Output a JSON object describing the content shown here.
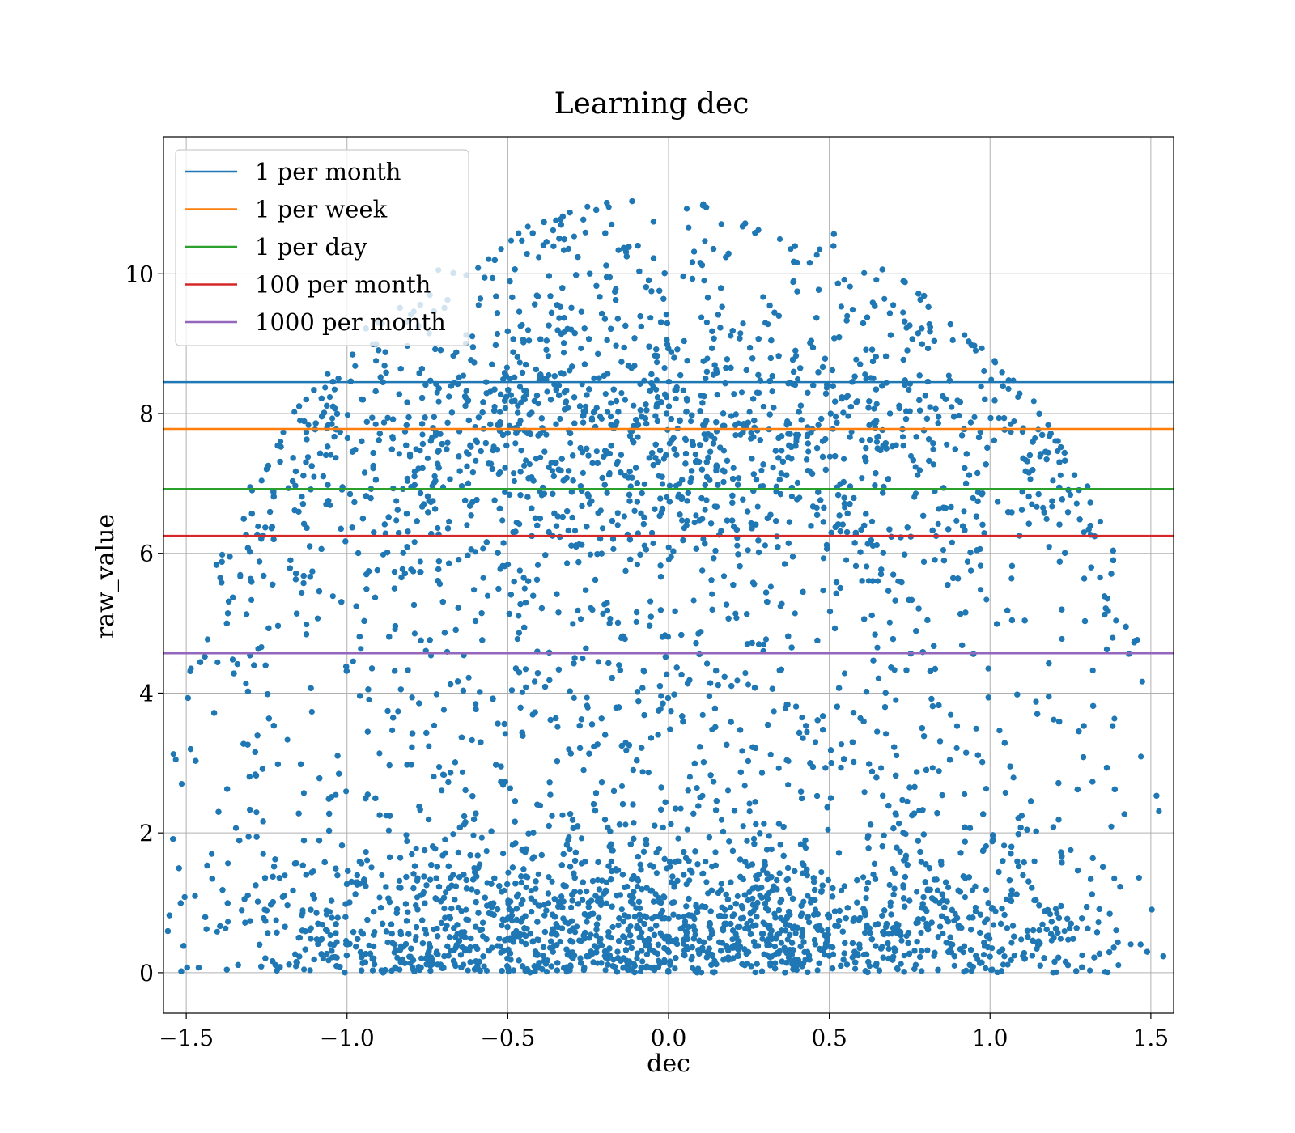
{
  "chart_data": {
    "type": "scatter",
    "title": "Learning dec",
    "xlabel": "dec",
    "ylabel": "raw_value",
    "xlim": [
      -1.5708,
      1.5708
    ],
    "ylim": [
      -0.58,
      11.96
    ],
    "xticks": [
      -1.5,
      -1.0,
      -0.5,
      0.0,
      0.5,
      1.0,
      1.5
    ],
    "xtick_labels": [
      "−1.5",
      "−1.0",
      "−0.5",
      "0.0",
      "0.5",
      "1.0",
      "1.5"
    ],
    "yticks": [
      0,
      2,
      4,
      6,
      8,
      10
    ],
    "ytick_labels": [
      "0",
      "2",
      "4",
      "6",
      "8",
      "10"
    ],
    "grid": true,
    "legend_position": "top-left",
    "scatter": {
      "color": "#1f77b4",
      "approx_point_count": 12000,
      "x_range": [
        -1.5708,
        1.5708
      ],
      "y_range": [
        0,
        11.1
      ]
    },
    "hlines": [
      {
        "name": "1 per month",
        "y": 8.45,
        "color": "#1f77b4"
      },
      {
        "name": "1 per week",
        "y": 7.78,
        "color": "#ff7f0e"
      },
      {
        "name": "1 per day",
        "y": 6.92,
        "color": "#2ca02c"
      },
      {
        "name": "100 per month",
        "y": 6.25,
        "color": "#d62728"
      },
      {
        "name": "1000 per month",
        "y": 4.57,
        "color": "#9467bd"
      }
    ]
  }
}
